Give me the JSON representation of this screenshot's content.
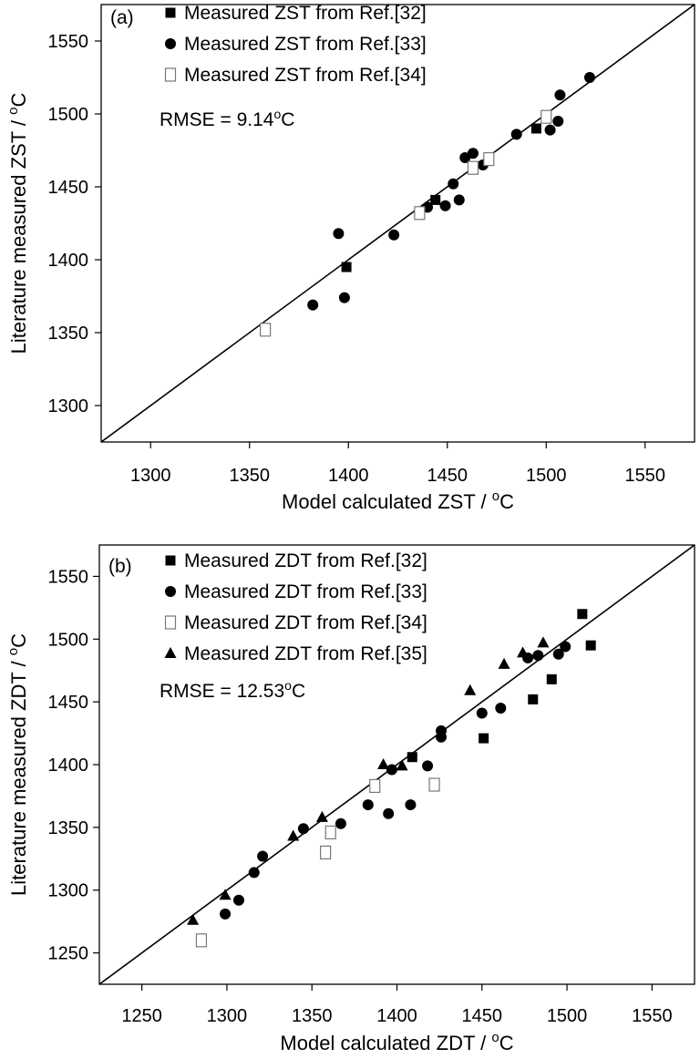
{
  "chart_data": [
    {
      "type": "scatter",
      "panel_label": "(a)",
      "xlabel": "Model calculated ZST / ",
      "ylabel": "Literature measured ZST / ",
      "unit": "°C",
      "unit_o": "o",
      "unit_c": "C",
      "xlim": [
        1275,
        1575
      ],
      "ylim": [
        1275,
        1575
      ],
      "xticks": [
        1300,
        1350,
        1400,
        1450,
        1500,
        1550
      ],
      "yticks": [
        1300,
        1350,
        1400,
        1450,
        1500,
        1550
      ],
      "diagonal": true,
      "rmse_text": "RMSE = 9.14",
      "rmse_unit_o": "o",
      "rmse_unit_c": "C",
      "series": [
        {
          "name": "Measured ZST from Ref.[32]",
          "marker": "square-filled",
          "points": [
            [
              1399,
              1395
            ],
            [
              1444,
              1441
            ],
            [
              1495,
              1490
            ]
          ]
        },
        {
          "name": "Measured ZST from Ref.[33]",
          "marker": "circle-filled",
          "points": [
            [
              1382,
              1369
            ],
            [
              1395,
              1418
            ],
            [
              1398,
              1374
            ],
            [
              1423,
              1417
            ],
            [
              1440,
              1436
            ],
            [
              1449,
              1437
            ],
            [
              1453,
              1452
            ],
            [
              1456,
              1441
            ],
            [
              1459,
              1470
            ],
            [
              1463,
              1473
            ],
            [
              1468,
              1465
            ],
            [
              1485,
              1486
            ],
            [
              1502,
              1489
            ],
            [
              1506,
              1495
            ],
            [
              1507,
              1513
            ],
            [
              1522,
              1525
            ]
          ]
        },
        {
          "name": "Measured ZST from Ref.[34]",
          "marker": "square-open",
          "points": [
            [
              1358,
              1352
            ],
            [
              1436,
              1432
            ],
            [
              1463,
              1463
            ],
            [
              1471,
              1469
            ],
            [
              1500,
              1498
            ]
          ]
        }
      ]
    },
    {
      "type": "scatter",
      "panel_label": "(b)",
      "xlabel": "Model calculated ZDT / ",
      "ylabel": "Literature measured ZDT / ",
      "unit": "°C",
      "unit_o": "o",
      "unit_c": "C",
      "xlim": [
        1225,
        1575
      ],
      "ylim": [
        1225,
        1575
      ],
      "xticks": [
        1250,
        1300,
        1350,
        1400,
        1450,
        1500,
        1550
      ],
      "yticks": [
        1250,
        1300,
        1350,
        1400,
        1450,
        1500,
        1550
      ],
      "diagonal": true,
      "rmse_text": "RMSE = 12.53",
      "rmse_unit_o": "o",
      "rmse_unit_c": "C",
      "series": [
        {
          "name": "Measured ZDT from Ref.[32]",
          "marker": "square-filled",
          "points": [
            [
              1409,
              1406
            ],
            [
              1451,
              1421
            ],
            [
              1480,
              1452
            ],
            [
              1491,
              1468
            ],
            [
              1509,
              1520
            ],
            [
              1514,
              1495
            ]
          ]
        },
        {
          "name": "Measured ZDT from Ref.[33]",
          "marker": "circle-filled",
          "points": [
            [
              1299,
              1281
            ],
            [
              1307,
              1292
            ],
            [
              1316,
              1314
            ],
            [
              1321,
              1327
            ],
            [
              1345,
              1349
            ],
            [
              1367,
              1353
            ],
            [
              1383,
              1368
            ],
            [
              1395,
              1361
            ],
            [
              1397,
              1396
            ],
            [
              1408,
              1368
            ],
            [
              1418,
              1399
            ],
            [
              1426,
              1422
            ],
            [
              1426,
              1427
            ],
            [
              1450,
              1441
            ],
            [
              1461,
              1445
            ],
            [
              1477,
              1485
            ],
            [
              1483,
              1487
            ],
            [
              1495,
              1488
            ],
            [
              1499,
              1494
            ]
          ]
        },
        {
          "name": "Measured ZDT from Ref.[34]",
          "marker": "square-open",
          "points": [
            [
              1285,
              1260
            ],
            [
              1358,
              1330
            ],
            [
              1361,
              1346
            ],
            [
              1387,
              1383
            ],
            [
              1422,
              1384
            ]
          ]
        },
        {
          "name": "Measured ZDT from Ref.[35]",
          "marker": "triangle-filled",
          "points": [
            [
              1280,
              1276
            ],
            [
              1299,
              1296
            ],
            [
              1339,
              1343
            ],
            [
              1356,
              1358
            ],
            [
              1392,
              1400
            ],
            [
              1403,
              1399
            ],
            [
              1443,
              1459
            ],
            [
              1463,
              1480
            ],
            [
              1474,
              1489
            ],
            [
              1486,
              1497
            ]
          ]
        }
      ]
    }
  ]
}
